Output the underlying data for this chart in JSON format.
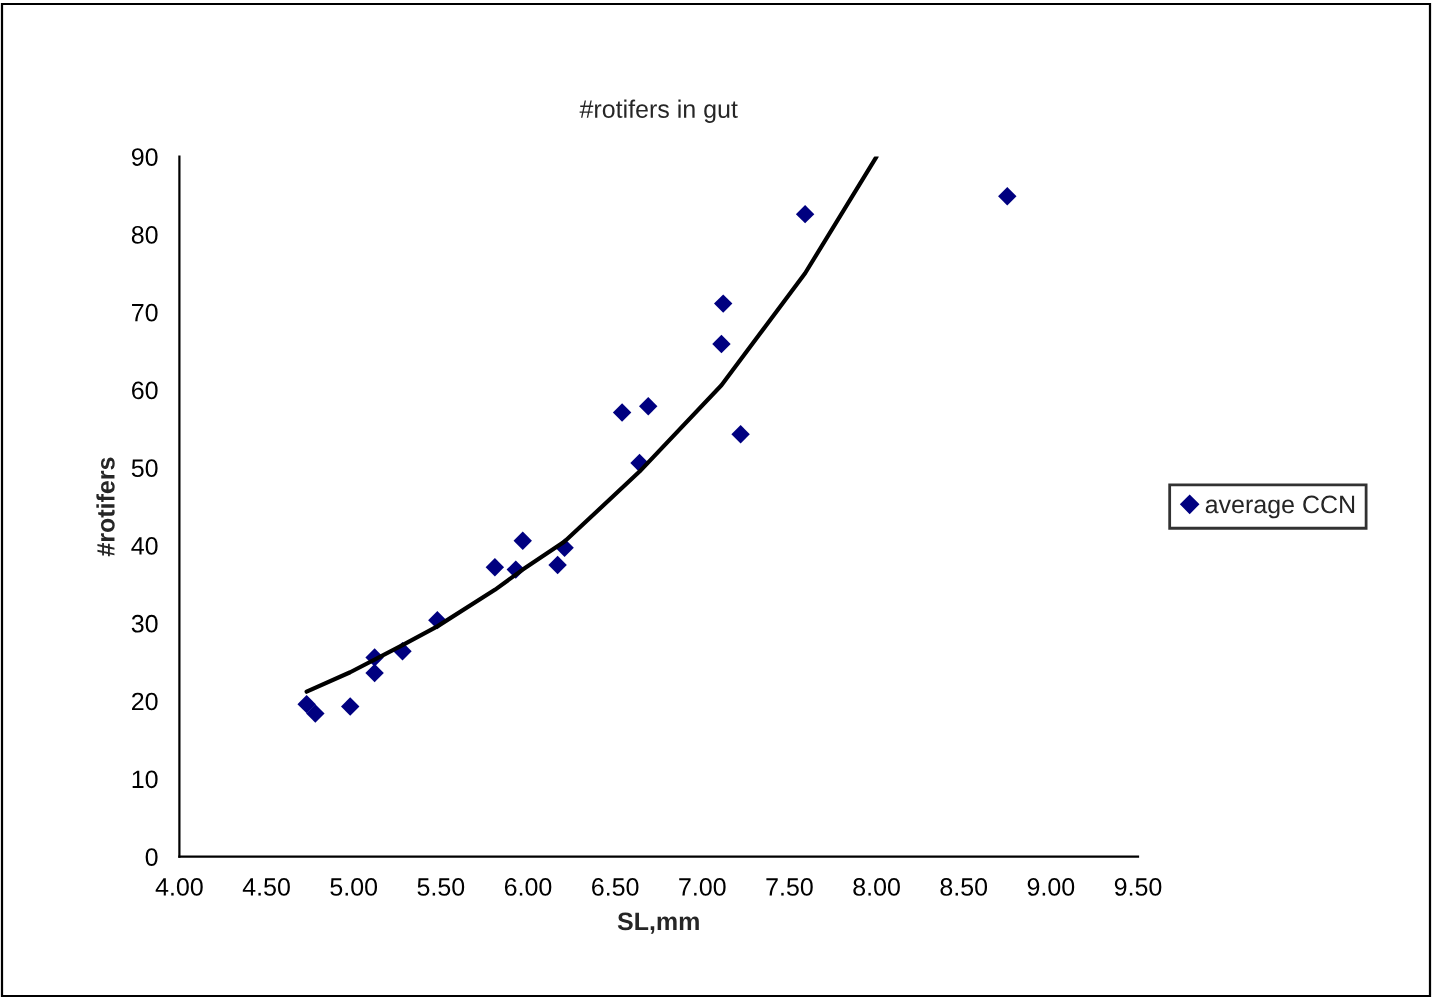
{
  "chart_data": {
    "type": "scatter",
    "title": "#rotifers in gut",
    "xlabel": "SL,mm",
    "ylabel": "#rotifers",
    "xlim": [
      4.0,
      9.5
    ],
    "xticks": [
      {
        "value": 4.0,
        "label": "4.00"
      },
      {
        "value": 4.5,
        "label": "4.50"
      },
      {
        "value": 5.0,
        "label": "5.00"
      },
      {
        "value": 5.5,
        "label": "5.50"
      },
      {
        "value": 6.0,
        "label": "6.00"
      },
      {
        "value": 6.5,
        "label": "6.50"
      },
      {
        "value": 7.0,
        "label": "7.00"
      },
      {
        "value": 7.5,
        "label": "7.50"
      },
      {
        "value": 8.0,
        "label": "8.00"
      },
      {
        "value": 8.5,
        "label": "8.50"
      },
      {
        "value": 9.0,
        "label": "9.00"
      },
      {
        "value": 9.5,
        "label": "9.50"
      }
    ],
    "ylim": [
      0,
      90
    ],
    "yticks": [
      0,
      10,
      20,
      30,
      40,
      50,
      60,
      70,
      80,
      90
    ],
    "grid": false,
    "legend": "right",
    "series": [
      {
        "name": "average CCN",
        "marker": "diamond",
        "color": "#000080",
        "x": [
          4.73,
          4.78,
          4.98,
          5.12,
          5.12,
          5.28,
          5.48,
          5.81,
          5.93,
          5.97,
          6.17,
          6.21,
          6.54,
          6.64,
          6.69,
          7.11,
          7.12,
          7.22,
          7.59,
          8.75
        ],
        "values": [
          19.6,
          18.4,
          19.3,
          25.6,
          23.6,
          26.4,
          30.4,
          37.2,
          36.9,
          40.6,
          37.5,
          39.7,
          57.1,
          50.6,
          57.9,
          65.9,
          71.1,
          54.3,
          82.6,
          84.9
        ]
      },
      {
        "type": "line",
        "marker": "none",
        "color": "#000000",
        "x": [
          4.73,
          4.98,
          5.28,
          5.48,
          5.81,
          5.97,
          6.21,
          6.64,
          7.11,
          7.59,
          8.0
        ],
        "values": [
          21.2,
          23.7,
          27.2,
          29.6,
          34.3,
          36.9,
          40.5,
          49.5,
          60.6,
          75.0,
          90.0
        ]
      }
    ]
  }
}
